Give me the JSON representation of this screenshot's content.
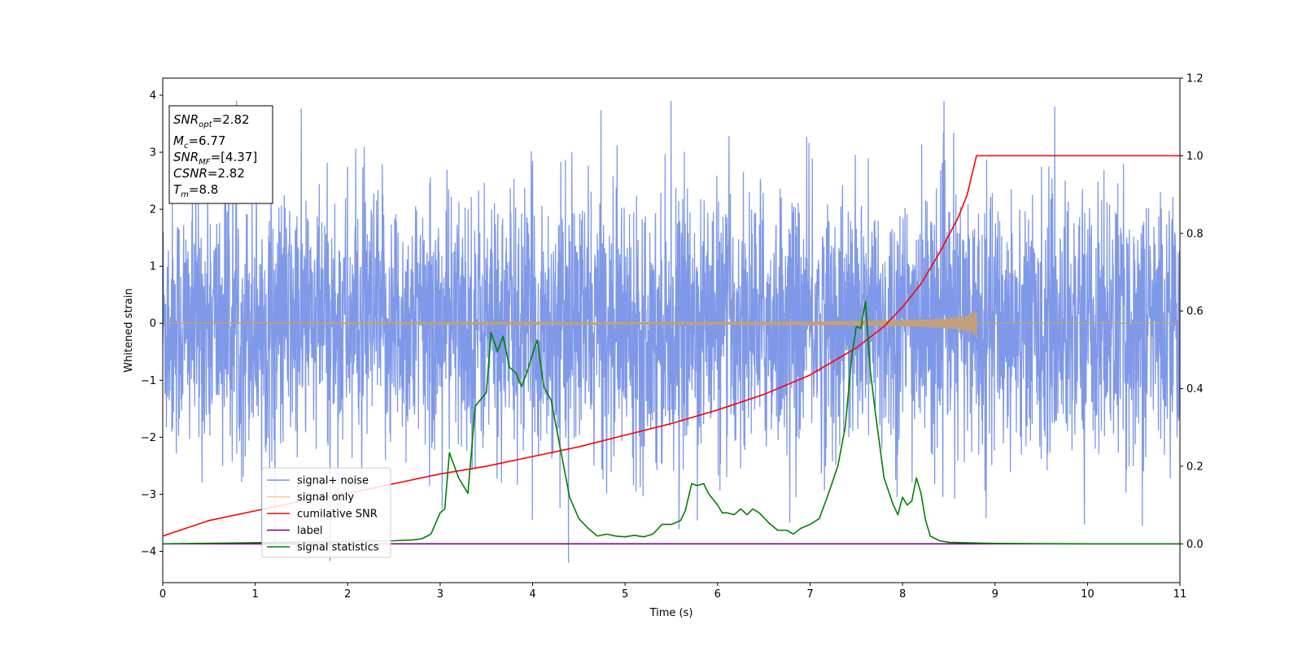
{
  "chart_data": {
    "type": "line",
    "title": "",
    "xlabel": "Time (s)",
    "ylabel_left": "Whitened strain",
    "ylabel_right": "",
    "xlim": [
      0,
      11
    ],
    "ylim_left": [
      -4.55,
      4.3
    ],
    "ylim_right": [
      -0.1,
      1.2
    ],
    "x_ticks": [
      0,
      1,
      2,
      3,
      4,
      5,
      6,
      7,
      8,
      9,
      10,
      11
    ],
    "y_ticks_left": [
      -4,
      -3,
      -2,
      -1,
      0,
      1,
      2,
      3,
      4
    ],
    "y_ticks_right": [
      0.0,
      0.2,
      0.4,
      0.6,
      0.8,
      1.0,
      1.2
    ],
    "x_tick_labels": [
      "0",
      "1",
      "2",
      "3",
      "4",
      "5",
      "6",
      "7",
      "8",
      "9",
      "10",
      "11"
    ],
    "y_tick_labels_left": [
      "−4",
      "−3",
      "−2",
      "−1",
      "0",
      "1",
      "2",
      "3",
      "4"
    ],
    "y_tick_labels_right": [
      "0.0",
      "0.2",
      "0.4",
      "0.6",
      "0.8",
      "1.0",
      "1.2"
    ],
    "grid": false,
    "legend_position": "lower-left",
    "colors": {
      "signal_noise": "#7892e6",
      "signal_only": "#f5c98a",
      "signal_only_drawn": "#c4a078",
      "cumulative_snr": "#ff0000",
      "label": "#800080",
      "signal_statistics": "#008000"
    },
    "series": [
      {
        "name": "signal+ noise",
        "axis": "left",
        "kind": "noise",
        "description_range": [
          -4.2,
          3.9
        ]
      },
      {
        "name": "signal only",
        "axis": "left",
        "kind": "chirp",
        "merger_time": 8.8,
        "peak_amplitude": 0.27
      },
      {
        "name": "cumilative SNR",
        "axis": "right",
        "x": [
          0,
          0.5,
          1,
          1.5,
          2,
          2.5,
          3,
          3.5,
          4,
          4.5,
          5,
          5.5,
          6,
          6.5,
          7,
          7.5,
          7.8,
          8.0,
          8.2,
          8.4,
          8.6,
          8.7,
          8.75,
          8.8,
          9,
          10,
          11
        ],
        "values": [
          0.02,
          0.06,
          0.085,
          0.11,
          0.13,
          0.155,
          0.18,
          0.2,
          0.225,
          0.25,
          0.28,
          0.31,
          0.345,
          0.385,
          0.435,
          0.505,
          0.56,
          0.61,
          0.67,
          0.75,
          0.84,
          0.9,
          0.95,
          1.0,
          1.0,
          1.0,
          1.0
        ]
      },
      {
        "name": "label",
        "axis": "right",
        "x": [
          0,
          11
        ],
        "values": [
          0.0,
          0.0
        ]
      },
      {
        "name": "signal statistics",
        "axis": "right",
        "x": [
          0,
          1,
          2,
          2.5,
          2.7,
          2.8,
          2.9,
          3.0,
          3.05,
          3.1,
          3.2,
          3.3,
          3.38,
          3.5,
          3.55,
          3.62,
          3.68,
          3.75,
          3.82,
          3.88,
          3.95,
          4.0,
          4.05,
          4.12,
          4.2,
          4.3,
          4.4,
          4.5,
          4.6,
          4.7,
          4.8,
          4.9,
          5.0,
          5.1,
          5.2,
          5.3,
          5.4,
          5.5,
          5.6,
          5.65,
          5.72,
          5.78,
          5.85,
          5.9,
          6.0,
          6.05,
          6.1,
          6.18,
          6.25,
          6.32,
          6.38,
          6.45,
          6.55,
          6.65,
          6.75,
          6.82,
          6.9,
          7.0,
          7.1,
          7.2,
          7.3,
          7.38,
          7.45,
          7.5,
          7.55,
          7.6,
          7.65,
          7.7,
          7.8,
          7.9,
          7.95,
          8.0,
          8.05,
          8.1,
          8.15,
          8.2,
          8.25,
          8.3,
          8.4,
          8.5,
          9,
          10,
          11
        ],
        "values": [
          0.0,
          0.003,
          0.006,
          0.008,
          0.01,
          0.013,
          0.025,
          0.08,
          0.09,
          0.235,
          0.17,
          0.13,
          0.355,
          0.39,
          0.545,
          0.495,
          0.535,
          0.455,
          0.44,
          0.405,
          0.45,
          0.49,
          0.525,
          0.405,
          0.37,
          0.245,
          0.12,
          0.065,
          0.04,
          0.02,
          0.025,
          0.02,
          0.018,
          0.022,
          0.018,
          0.025,
          0.05,
          0.05,
          0.06,
          0.085,
          0.155,
          0.15,
          0.155,
          0.13,
          0.1,
          0.08,
          0.08,
          0.075,
          0.09,
          0.075,
          0.09,
          0.08,
          0.055,
          0.035,
          0.035,
          0.025,
          0.04,
          0.05,
          0.065,
          0.13,
          0.2,
          0.3,
          0.48,
          0.56,
          0.555,
          0.625,
          0.45,
          0.35,
          0.17,
          0.1,
          0.075,
          0.12,
          0.1,
          0.11,
          0.17,
          0.13,
          0.06,
          0.02,
          0.008,
          0.004,
          0.001,
          0.0,
          0.0
        ]
      }
    ],
    "annotation": {
      "lines": [
        {
          "main": "SNR",
          "sub": "opt",
          "rest": "=2.82"
        },
        {
          "main": "M",
          "sub": "c",
          "rest": "=6.77"
        },
        {
          "main": "SNR",
          "sub": "MF",
          "rest": "=[4.37]"
        },
        {
          "main": "CSNR",
          "sub": "",
          "rest": "=2.82"
        },
        {
          "main": "T",
          "sub": "m",
          "rest": "=8.8"
        }
      ]
    }
  }
}
